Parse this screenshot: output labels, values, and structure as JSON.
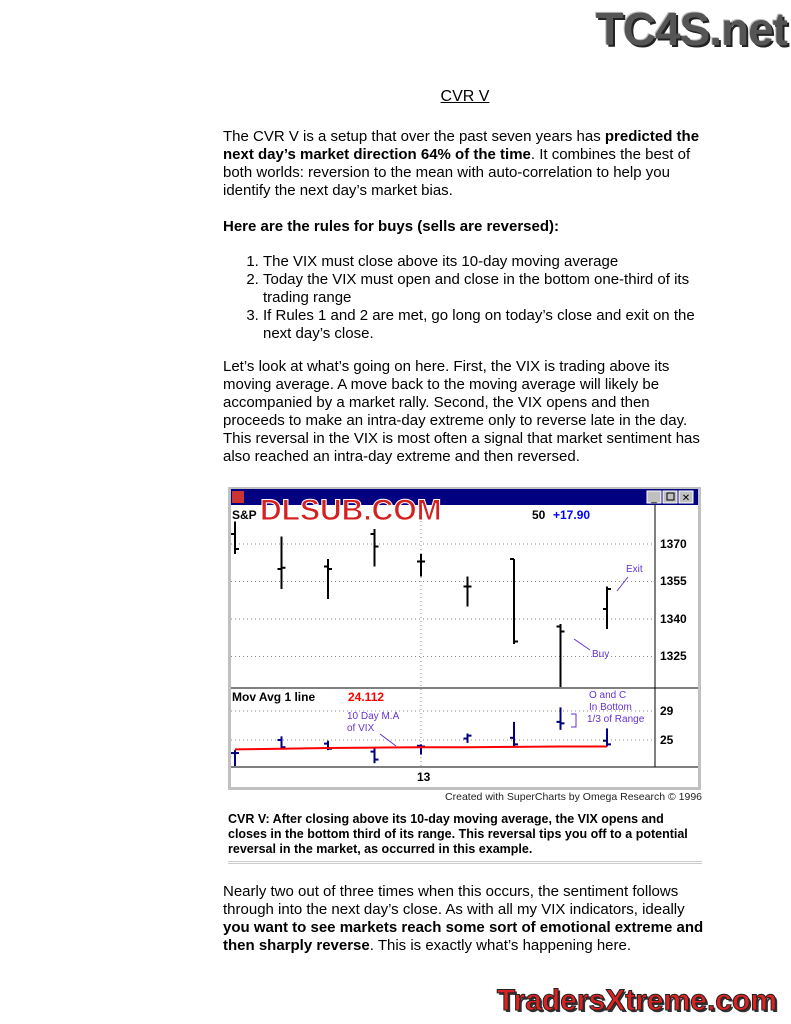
{
  "logos": {
    "top": "TC4S.net",
    "bottom": "TradersXtreme.com",
    "watermark": "DLSUB.COM"
  },
  "title": "CVR V",
  "intro": {
    "pre": "The CVR V is a setup that over the past seven years has ",
    "bold": "predicted the next day’s market direction 64% of the time",
    "post": ". It combines the best of both worlds: reversion to the mean with auto-correlation to help you identify the next day’s market bias."
  },
  "rules_heading": "Here are the rules for buys (sells are reversed):",
  "rules": [
    "The VIX must close above its 10-day moving average",
    "Today the VIX must open and close in the bottom one-third of its trading range",
    "If Rules 1 and 2 are met, go long on today’s close and exit on the next day’s close."
  ],
  "explanation": "Let’s look at what’s going on here. First, the VIX is trading above its moving average. A move back to the moving average will likely be accompanied by a market rally. Second, the VIX opens and then proceeds to make an intra-day extreme only to reverse late in the day. This reversal in the VIX is most often a signal that market sentiment has also reached an intra-day extreme and then reversed.",
  "chart": {
    "price_label": "S&P",
    "price_value_fragment": "50",
    "change": "+17.90",
    "ma_label": "Mov Avg 1 line",
    "ma_value": "24.112",
    "price_ticks": [
      "1370",
      "1355",
      "1340",
      "1325"
    ],
    "vix_ticks": [
      "29",
      "25"
    ],
    "date_label": "13",
    "annotations": {
      "exit": "Exit",
      "buy": "Buy",
      "ma": [
        "10 Day M.A",
        "of VIX"
      ],
      "oc": [
        "O and C",
        "In Bottom",
        "1/3 of Range"
      ]
    },
    "colors": {
      "titlebar": "#000080",
      "ma_line": "#ff0000",
      "vix_bars": "#000080",
      "annotation": "#6633cc",
      "change": "#0000ff"
    }
  },
  "chart_data": {
    "type": "ohlc",
    "price": [
      {
        "o": 1374,
        "h": 1379,
        "l": 1366,
        "c": 1368
      },
      {
        "o": 1360,
        "h": 1373,
        "l": 1352,
        "c": 1360.5
      },
      {
        "o": 1361,
        "h": 1364,
        "l": 1348,
        "c": 1360
      },
      {
        "o": 1374,
        "h": 1376,
        "l": 1361,
        "c": 1369
      },
      {
        "o": 1363,
        "h": 1366,
        "l": 1357,
        "c": 1363
      },
      {
        "o": 1353,
        "h": 1357,
        "l": 1345,
        "c": 1353
      },
      {
        "o": 1364,
        "h": 1364,
        "l": 1330,
        "c": 1331
      },
      {
        "o": 1337,
        "h": 1338,
        "l": 1312,
        "c": 1335
      },
      {
        "o": 1344,
        "h": 1353,
        "l": 1336,
        "c": 1352
      }
    ],
    "vix": [
      {
        "o": 23.2,
        "h": 23.6,
        "l": 21.4,
        "c": 23.2
      },
      {
        "o": 25.0,
        "h": 25.5,
        "l": 23.8,
        "c": 24.0
      },
      {
        "o": 24.5,
        "h": 24.9,
        "l": 23.6,
        "c": 23.8
      },
      {
        "o": 23.4,
        "h": 23.9,
        "l": 21.8,
        "c": 22.3
      },
      {
        "o": 24.2,
        "h": 24.4,
        "l": 23.0,
        "c": 24.1
      },
      {
        "o": 25.2,
        "h": 25.9,
        "l": 24.6,
        "c": 25.6
      },
      {
        "o": 25.3,
        "h": 27.5,
        "l": 24.1,
        "c": 24.4
      },
      {
        "o": 27.5,
        "h": 29.5,
        "l": 26.4,
        "c": 27.3
      },
      {
        "o": 24.9,
        "h": 26.6,
        "l": 24.1,
        "c": 24.4
      }
    ],
    "ma": [
      23.7,
      23.8,
      23.9,
      23.95,
      24.0,
      24.0,
      24.05,
      24.1,
      24.112
    ],
    "price_ylim": [
      1310,
      1385
    ],
    "vix_ylim": [
      21,
      31
    ]
  },
  "credit": "Created with SuperCharts by Omega Research © 1996",
  "caption": "CVR V: After closing above its 10-day moving average, the VIX opens and closes in the bottom third of its range. This reversal tips you off to a potential reversal in the market, as occurred in this example.",
  "conclusion": {
    "pre": "Nearly two out of three times when this occurs, the sentiment follows through into the next day’s close. As with all my VIX indicators, ideally ",
    "bold": "you want to see markets reach some sort of emotional extreme and then sharply reverse",
    "post": ". This is exactly what’s happening here."
  }
}
